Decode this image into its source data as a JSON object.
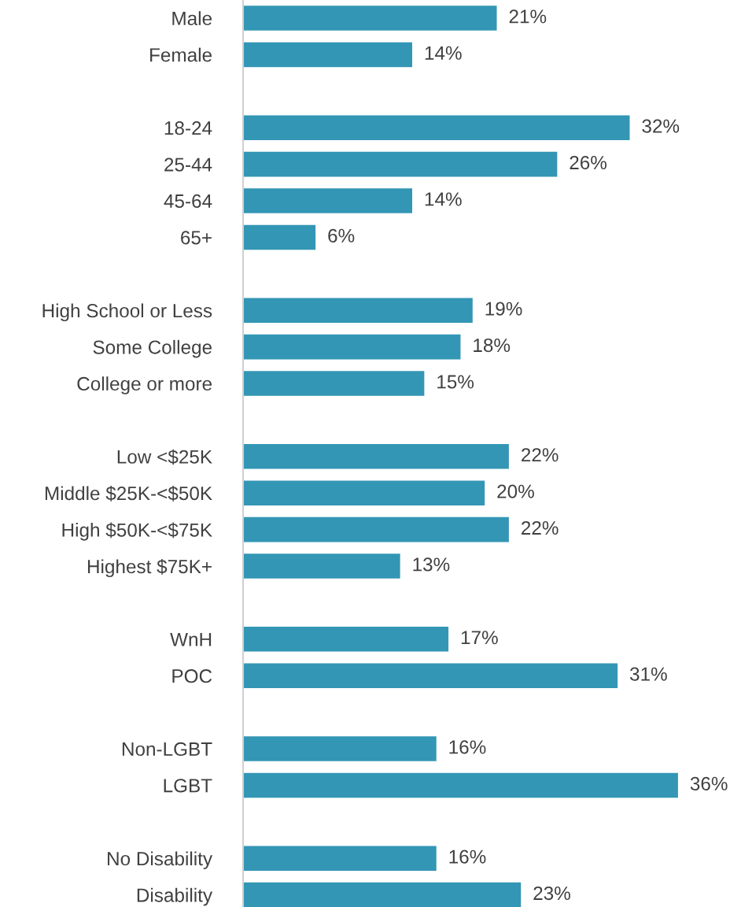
{
  "chart_data": {
    "type": "bar",
    "orientation": "horizontal",
    "color": "#3396b5",
    "categories": [
      "Male",
      "Female",
      null,
      "18-24",
      "25-44",
      "45-64",
      "65+",
      null,
      "High School or Less",
      "Some College",
      "College or more",
      null,
      "Low <$25K",
      "Middle $25K-<$50K",
      "High $50K-<$75K",
      "Highest $75K+",
      null,
      "WnH",
      "POC",
      null,
      "Non-LGBT",
      "LGBT",
      null,
      "No Disability",
      "Disability"
    ],
    "values": [
      21,
      14,
      null,
      32,
      26,
      14,
      6,
      null,
      19,
      18,
      15,
      null,
      22,
      20,
      22,
      13,
      null,
      17,
      31,
      null,
      16,
      36,
      null,
      16,
      23
    ],
    "value_labels": [
      "21%",
      "14%",
      null,
      "32%",
      "26%",
      "14%",
      "6%",
      null,
      "19%",
      "18%",
      "15%",
      null,
      "22%",
      "20%",
      "22%",
      "13%",
      null,
      "17%",
      "31%",
      null,
      "16%",
      "36%",
      null,
      "16%",
      "23%"
    ],
    "grid": false,
    "legend": false,
    "tick_labels": "y"
  }
}
